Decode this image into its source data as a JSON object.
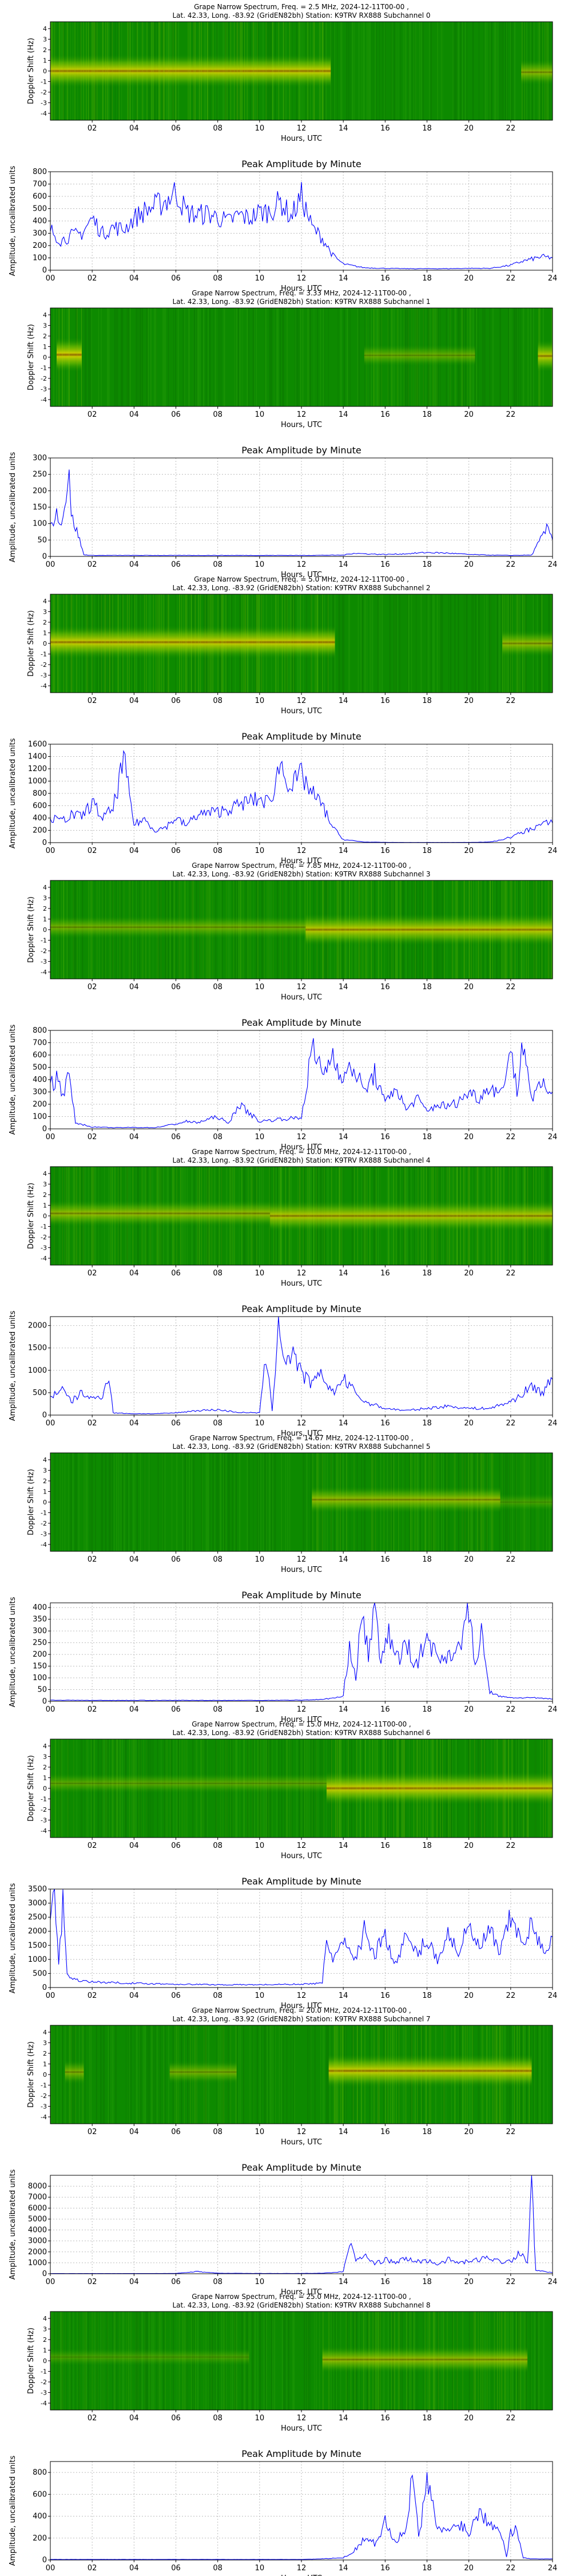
{
  "common": {
    "spec_title_line2": "Lat.  42.33, Long. -83.92 (GridEN82bh) Station: K9TRV RX888 Subchannel",
    "spec_ylabel": "Doppler Shift (Hz)",
    "amp_title": "Peak Amplitude by Minute",
    "amp_ylabel": "Amplitude, uncalibrated units",
    "xlabel": "Hours, UTC",
    "spec_yticks": [
      "4",
      "3",
      "2",
      "1",
      "0",
      "-1",
      "-2",
      "-3",
      "-4"
    ],
    "spec_xticks": [
      "02",
      "04",
      "06",
      "08",
      "10",
      "12",
      "14",
      "16",
      "18",
      "20",
      "22"
    ],
    "amp_xticks": [
      "00",
      "02",
      "04",
      "06",
      "08",
      "10",
      "12",
      "14",
      "16",
      "18",
      "20",
      "22",
      "24"
    ],
    "colors": {
      "line": "#0000ff",
      "spec_base": "#0d8a00",
      "spec_mid": "#a6d600",
      "spec_hot": "#ffe100",
      "spec_peak": "#ff5a00"
    }
  },
  "chart_data": [
    {
      "type": "heatmap",
      "subchannel": "0",
      "title": "Grape Narrow Spectrum, Freq. = 2.5 MHz, 2024-12-11T00-00 ,",
      "subtitle": "Lat.  42.33, Long. -83.92 (GridEN82bh) Station: K9TRV RX888 Subchannel 0",
      "xlabel": "Hours, UTC",
      "ylabel": "Doppler Shift (Hz)",
      "xlim": [
        0,
        24
      ],
      "ylim": [
        -4,
        4
      ],
      "bands": [
        {
          "x0": 0.0,
          "x1": 13.4,
          "y": 0.0,
          "intensity": 0.85
        },
        {
          "x0": 22.5,
          "x1": 24.0,
          "y": -0.1,
          "intensity": 0.55
        }
      ]
    },
    {
      "type": "line",
      "subchannel": "0",
      "title": "Peak Amplitude by Minute",
      "xlabel": "Hours, UTC",
      "ylabel": "Amplitude, uncalibrated units",
      "xlim": [
        0,
        24
      ],
      "ylim": [
        0,
        800
      ],
      "yticks": [
        0,
        100,
        200,
        300,
        400,
        500,
        600,
        700,
        800
      ],
      "x": [
        0,
        0.5,
        1,
        1.5,
        2,
        2.5,
        3,
        3.5,
        4,
        4.5,
        5,
        5.5,
        6,
        6.5,
        7,
        7.5,
        8,
        8.5,
        9,
        9.5,
        10,
        10.5,
        11,
        11.5,
        12,
        12.5,
        13,
        13.5,
        14,
        15,
        16,
        17,
        18,
        19,
        20,
        21,
        22,
        22.5,
        23,
        23.5,
        24
      ],
      "values": [
        330,
        240,
        280,
        300,
        420,
        300,
        350,
        330,
        420,
        480,
        520,
        560,
        640,
        470,
        450,
        460,
        430,
        390,
        450,
        420,
        470,
        480,
        560,
        430,
        600,
        350,
        260,
        120,
        50,
        20,
        15,
        12,
        12,
        12,
        15,
        15,
        40,
        70,
        90,
        110,
        100
      ]
    },
    {
      "type": "heatmap",
      "subchannel": "1",
      "title": "Grape Narrow Spectrum, Freq. = 3.33 MHz, 2024-12-11T00-00 ,",
      "subtitle": "Lat.  42.33, Long. -83.92 (GridEN82bh) Station: K9TRV RX888 Subchannel 1",
      "xlabel": "Hours, UTC",
      "ylabel": "Doppler Shift (Hz)",
      "xlim": [
        0,
        24
      ],
      "ylim": [
        -4,
        4
      ],
      "bands": [
        {
          "x0": 0.3,
          "x1": 1.5,
          "y": 0.2,
          "intensity": 0.9
        },
        {
          "x0": 15.0,
          "x1": 20.3,
          "y": 0.15,
          "intensity": 0.4
        },
        {
          "x0": 23.3,
          "x1": 24.0,
          "y": 0.1,
          "intensity": 0.8
        }
      ]
    },
    {
      "type": "line",
      "subchannel": "1",
      "title": "Peak Amplitude by Minute",
      "xlabel": "Hours, UTC",
      "ylabel": "Amplitude, uncalibrated units",
      "xlim": [
        0,
        24
      ],
      "ylim": [
        0,
        300
      ],
      "yticks": [
        0,
        50,
        100,
        150,
        200,
        250,
        300
      ],
      "x": [
        0,
        0.3,
        0.6,
        0.9,
        1.0,
        1.2,
        1.4,
        1.6,
        2,
        4,
        6,
        8,
        10,
        12,
        14,
        14.5,
        15,
        16,
        17,
        18,
        19,
        20,
        21,
        22,
        23,
        23.5,
        23.8,
        24
      ],
      "values": [
        90,
        130,
        110,
        280,
        120,
        90,
        50,
        5,
        3,
        3,
        3,
        3,
        3,
        3,
        4,
        10,
        8,
        6,
        8,
        12,
        10,
        6,
        4,
        3,
        4,
        60,
        90,
        50
      ]
    },
    {
      "type": "heatmap",
      "subchannel": "2",
      "title": "Grape Narrow Spectrum, Freq. = 5.0 MHz, 2024-12-11T00-00 ,",
      "subtitle": "Lat.  42.33, Long. -83.92 (GridEN82bh) Station: K9TRV RX888 Subchannel 2",
      "xlabel": "Hours, UTC",
      "ylabel": "Doppler Shift (Hz)",
      "xlim": [
        0,
        24
      ],
      "ylim": [
        -4,
        4
      ],
      "bands": [
        {
          "x0": 0.0,
          "x1": 13.6,
          "y": 0.1,
          "intensity": 0.85
        },
        {
          "x0": 21.6,
          "x1": 24.0,
          "y": 0.0,
          "intensity": 0.6
        }
      ]
    },
    {
      "type": "line",
      "subchannel": "2",
      "title": "Peak Amplitude by Minute",
      "xlabel": "Hours, UTC",
      "ylabel": "Amplitude, uncalibrated units",
      "xlim": [
        0,
        24
      ],
      "ylim": [
        0,
        1600
      ],
      "yticks": [
        0,
        200,
        400,
        600,
        800,
        1000,
        1200,
        1400,
        1600
      ],
      "x": [
        0,
        0.5,
        1,
        1.5,
        2,
        2.5,
        3,
        3.5,
        4,
        4.5,
        5,
        5.5,
        6,
        6.5,
        7,
        7.5,
        8,
        8.5,
        9,
        9.5,
        10,
        10.5,
        11,
        11.5,
        12,
        12.5,
        13,
        13.5,
        14,
        15,
        16,
        17,
        18,
        19,
        20,
        21,
        21.5,
        22,
        22.5,
        23,
        23.5,
        24
      ],
      "values": [
        400,
        350,
        450,
        420,
        650,
        400,
        550,
        1350,
        300,
        380,
        200,
        250,
        400,
        280,
        450,
        480,
        500,
        550,
        600,
        680,
        700,
        650,
        1300,
        900,
        1100,
        800,
        600,
        250,
        50,
        10,
        5,
        3,
        3,
        3,
        5,
        10,
        40,
        90,
        160,
        230,
        300,
        320
      ]
    },
    {
      "type": "heatmap",
      "subchannel": "3",
      "title": "Grape Narrow Spectrum, Freq. = 7.85 MHz, 2024-12-11T00-00 ,",
      "subtitle": "Lat.  42.33, Long. -83.92 (GridEN82bh) Station: K9TRV RX888 Subchannel 3",
      "xlabel": "Hours, UTC",
      "ylabel": "Doppler Shift (Hz)",
      "xlim": [
        0,
        24
      ],
      "ylim": [
        -4,
        4
      ],
      "bands": [
        {
          "x0": 0.0,
          "x1": 12.2,
          "y": 0.2,
          "intensity": 0.45
        },
        {
          "x0": 12.2,
          "x1": 24.0,
          "y": 0.0,
          "intensity": 0.8
        }
      ]
    },
    {
      "type": "line",
      "subchannel": "3",
      "title": "Peak Amplitude by Minute",
      "xlabel": "Hours, UTC",
      "ylabel": "Amplitude, uncalibrated units",
      "xlim": [
        0,
        24
      ],
      "ylim": [
        0,
        800
      ],
      "yticks": [
        0,
        100,
        200,
        300,
        400,
        500,
        600,
        700,
        800
      ],
      "x": [
        0,
        0.3,
        0.6,
        0.9,
        1.2,
        2,
        3,
        4,
        5,
        6,
        6.5,
        7,
        8,
        8.5,
        9,
        10,
        11,
        12,
        12.5,
        13,
        13.5,
        14,
        14.5,
        15,
        15.5,
        16,
        16.5,
        17,
        17.5,
        18,
        18.5,
        19,
        19.5,
        20,
        20.5,
        21,
        21.5,
        22,
        22.3,
        22.6,
        23,
        23.5,
        24
      ],
      "values": [
        350,
        420,
        300,
        430,
        50,
        15,
        10,
        12,
        10,
        40,
        60,
        50,
        100,
        40,
        200,
        60,
        80,
        90,
        650,
        450,
        600,
        420,
        500,
        300,
        450,
        200,
        350,
        150,
        250,
        140,
        200,
        180,
        220,
        300,
        250,
        350,
        280,
        650,
        300,
        720,
        250,
        350,
        300
      ]
    },
    {
      "type": "heatmap",
      "subchannel": "4",
      "title": "Grape Narrow Spectrum, Freq. = 10.0 MHz, 2024-12-11T00-00 ,",
      "subtitle": "Lat.  42.33, Long. -83.92 (GridEN82bh) Station: K9TRV RX888 Subchannel 4",
      "xlabel": "Hours, UTC",
      "ylabel": "Doppler Shift (Hz)",
      "xlim": [
        0,
        24
      ],
      "ylim": [
        -4,
        4
      ],
      "bands": [
        {
          "x0": 0.0,
          "x1": 10.5,
          "y": 0.2,
          "intensity": 0.6
        },
        {
          "x0": 10.5,
          "x1": 24.0,
          "y": 0.0,
          "intensity": 0.75
        }
      ]
    },
    {
      "type": "line",
      "subchannel": "4",
      "title": "Peak Amplitude by Minute",
      "xlabel": "Hours, UTC",
      "ylabel": "Amplitude, uncalibrated units",
      "xlim": [
        0,
        24
      ],
      "ylim": [
        0,
        2200
      ],
      "yticks": [
        0,
        500,
        1000,
        1500,
        2000
      ],
      "x": [
        0,
        0.5,
        1,
        1.5,
        2,
        2.5,
        2.8,
        3,
        4,
        5,
        6,
        7,
        8,
        9,
        10,
        10.3,
        10.6,
        10.9,
        11.2,
        11.6,
        12,
        12.5,
        13,
        13.5,
        14,
        15,
        16,
        17,
        18,
        19,
        20,
        21,
        22,
        22.5,
        23,
        23.5,
        24
      ],
      "values": [
        400,
        600,
        300,
        500,
        350,
        450,
        900,
        50,
        30,
        30,
        50,
        100,
        120,
        60,
        50,
        1300,
        100,
        2100,
        1200,
        1400,
        900,
        700,
        900,
        500,
        800,
        300,
        150,
        100,
        150,
        200,
        150,
        150,
        300,
        450,
        650,
        500,
        800
      ]
    },
    {
      "type": "heatmap",
      "subchannel": "5",
      "title": "Grape Narrow Spectrum, Freq. = 14.67 MHz, 2024-12-11T00-00 ,",
      "subtitle": "Lat.  42.33, Long. -83.92 (GridEN82bh) Station: K9TRV RX888 Subchannel 5",
      "xlabel": "Hours, UTC",
      "ylabel": "Doppler Shift (Hz)",
      "xlim": [
        0,
        24
      ],
      "ylim": [
        -4,
        4
      ],
      "bands": [
        {
          "x0": 12.5,
          "x1": 21.5,
          "y": 0.2,
          "intensity": 0.6
        },
        {
          "x0": 21.5,
          "x1": 24.0,
          "y": 0.0,
          "intensity": 0.25
        }
      ]
    },
    {
      "type": "line",
      "subchannel": "5",
      "title": "Peak Amplitude by Minute",
      "xlabel": "Hours, UTC",
      "ylabel": "Amplitude, uncalibrated units",
      "xlim": [
        0,
        24
      ],
      "ylim": [
        0,
        420
      ],
      "yticks": [
        0,
        50,
        100,
        150,
        200,
        250,
        300,
        350,
        400
      ],
      "x": [
        0,
        2,
        4,
        6,
        8,
        10,
        12,
        13,
        14,
        14.3,
        14.6,
        14.9,
        15.2,
        15.5,
        15.8,
        16.1,
        16.4,
        16.7,
        17,
        17.5,
        18,
        18.5,
        19,
        19.5,
        20,
        20.3,
        20.6,
        21,
        21.5,
        22,
        23,
        24
      ],
      "values": [
        5,
        4,
        4,
        4,
        4,
        4,
        5,
        8,
        20,
        250,
        100,
        380,
        200,
        390,
        150,
        300,
        220,
        180,
        250,
        150,
        280,
        180,
        200,
        220,
        390,
        150,
        280,
        40,
        20,
        15,
        15,
        10
      ]
    },
    {
      "type": "heatmap",
      "subchannel": "6",
      "title": "Grape Narrow Spectrum, Freq. = 15.0 MHz, 2024-12-11T00-00 ,",
      "subtitle": "Lat.  42.33, Long. -83.92 (GridEN82bh) Station: K9TRV RX888 Subchannel 6",
      "xlabel": "Hours, UTC",
      "ylabel": "Doppler Shift (Hz)",
      "xlim": [
        0,
        24
      ],
      "ylim": [
        -4,
        4
      ],
      "bands": [
        {
          "x0": 0.0,
          "x1": 13.2,
          "y": 0.4,
          "intensity": 0.35
        },
        {
          "x0": 13.2,
          "x1": 24.0,
          "y": 0.0,
          "intensity": 0.85
        }
      ]
    },
    {
      "type": "line",
      "subchannel": "6",
      "title": "Peak Amplitude by Minute",
      "xlabel": "Hours, UTC",
      "ylabel": "Amplitude, uncalibrated units",
      "xlim": [
        0,
        24
      ],
      "ylim": [
        0,
        3500
      ],
      "yticks": [
        0,
        500,
        1000,
        1500,
        2000,
        2500,
        3000,
        3500
      ],
      "x": [
        0,
        0.2,
        0.4,
        0.6,
        0.8,
        1,
        2,
        4,
        6,
        8,
        10,
        12,
        13,
        13.2,
        13.5,
        14,
        14.5,
        15,
        15.5,
        16,
        16.5,
        17,
        17.5,
        18,
        18.5,
        19,
        19.5,
        20,
        20.5,
        21,
        21.5,
        22,
        22.5,
        23,
        23.5,
        24
      ],
      "values": [
        2500,
        3300,
        800,
        3000,
        600,
        300,
        200,
        150,
        120,
        100,
        100,
        120,
        150,
        1800,
        1000,
        1600,
        900,
        2000,
        1200,
        1900,
        800,
        1800,
        1200,
        1700,
        1000,
        1900,
        1300,
        2100,
        1400,
        2000,
        1200,
        2500,
        1600,
        2200,
        1300,
        1800
      ]
    },
    {
      "type": "heatmap",
      "subchannel": "7",
      "title": "Grape Narrow Spectrum, Freq. = 20.0 MHz, 2024-12-11T00-00 ,",
      "subtitle": "Lat.  42.33, Long. -83.92 (GridEN82bh) Station: K9TRV RX888 Subchannel 7",
      "xlabel": "Hours, UTC",
      "ylabel": "Doppler Shift (Hz)",
      "xlim": [
        0,
        24
      ],
      "ylim": [
        -4,
        4
      ],
      "bands": [
        {
          "x0": 0.7,
          "x1": 1.6,
          "y": 0.2,
          "intensity": 0.5
        },
        {
          "x0": 5.7,
          "x1": 8.9,
          "y": 0.2,
          "intensity": 0.45
        },
        {
          "x0": 13.3,
          "x1": 23.0,
          "y": 0.3,
          "intensity": 0.85
        }
      ]
    },
    {
      "type": "line",
      "subchannel": "7",
      "title": "Peak Amplitude by Minute",
      "xlabel": "Hours, UTC",
      "ylabel": "Amplitude, uncalibrated units",
      "xlim": [
        0,
        24
      ],
      "ylim": [
        0,
        9000
      ],
      "yticks": [
        0,
        1000,
        2000,
        3000,
        4000,
        5000,
        6000,
        7000,
        8000
      ],
      "x": [
        0,
        2,
        4,
        6,
        7,
        8,
        10,
        12,
        13,
        13.5,
        14,
        14.3,
        14.6,
        15,
        15.5,
        16,
        16.5,
        17,
        17.5,
        18,
        18.5,
        19,
        19.5,
        20,
        20.5,
        21,
        21.5,
        22,
        22.5,
        22.8,
        23,
        23.2,
        24
      ],
      "values": [
        20,
        20,
        20,
        30,
        200,
        50,
        30,
        30,
        50,
        100,
        200,
        2800,
        1200,
        1700,
        900,
        1300,
        1000,
        1400,
        1100,
        1200,
        900,
        1300,
        1000,
        1100,
        1300,
        1500,
        1100,
        1200,
        2000,
        1000,
        8200,
        300,
        100
      ]
    },
    {
      "type": "heatmap",
      "subchannel": "8",
      "title": "Grape Narrow Spectrum, Freq. = 25.0 MHz, 2024-12-11T00-00 ,",
      "subtitle": "Lat.  42.33, Long. -83.92 (GridEN82bh) Station: K9TRV RX888 Subchannel 8",
      "xlabel": "Hours, UTC",
      "ylabel": "Doppler Shift (Hz)",
      "xlim": [
        0,
        24
      ],
      "ylim": [
        -4,
        4
      ],
      "bands": [
        {
          "x0": 0.0,
          "x1": 9.5,
          "y": 0.3,
          "intensity": 0.25
        },
        {
          "x0": 13.0,
          "x1": 22.8,
          "y": 0.1,
          "intensity": 0.6
        }
      ]
    },
    {
      "type": "line",
      "subchannel": "8",
      "title": "Peak Amplitude by Minute",
      "xlabel": "Hours, UTC",
      "ylabel": "Amplitude, uncalibrated units",
      "xlim": [
        0,
        24
      ],
      "ylim": [
        0,
        900
      ],
      "yticks": [
        0,
        200,
        400,
        600,
        800
      ],
      "x": [
        0,
        2,
        4,
        6,
        8,
        10,
        12,
        13,
        14,
        14.5,
        15,
        15.5,
        16,
        16.5,
        17,
        17.3,
        17.6,
        18,
        18.5,
        19,
        19.5,
        20,
        20.5,
        21,
        21.5,
        21.8,
        22,
        22.3,
        22.6,
        23,
        24
      ],
      "values": [
        5,
        5,
        5,
        5,
        5,
        5,
        5,
        10,
        20,
        80,
        200,
        150,
        350,
        180,
        250,
        800,
        200,
        700,
        300,
        250,
        350,
        250,
        450,
        350,
        300,
        30,
        250,
        300,
        20,
        10,
        10
      ]
    }
  ]
}
